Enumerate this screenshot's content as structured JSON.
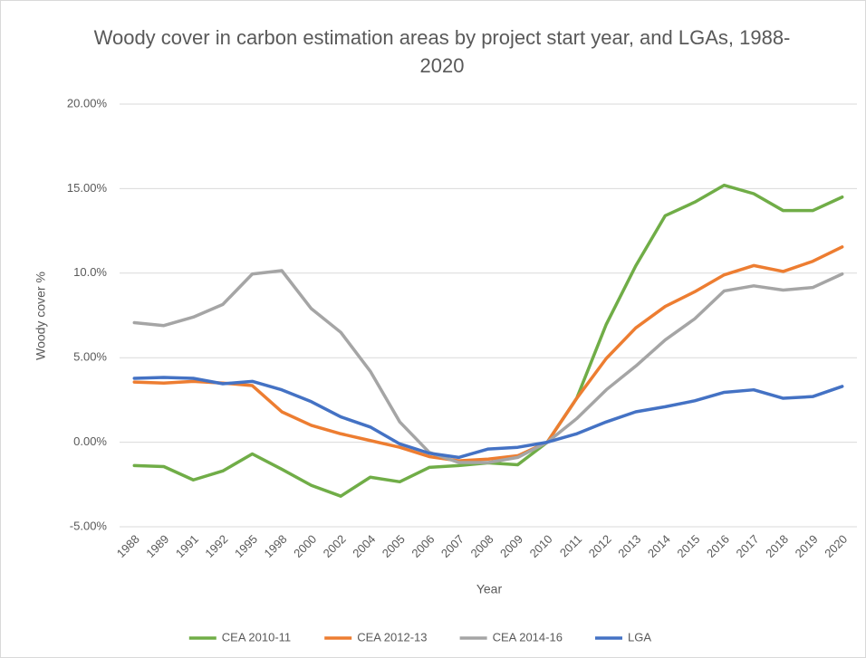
{
  "chart_data": {
    "type": "line",
    "title": "Woody cover in carbon estimation areas by project start year, and LGAs, 1988-2020",
    "x_label": "Year",
    "y_label": "Woody cover %",
    "categories": [
      "1988",
      "1989",
      "1991",
      "1992",
      "1995",
      "1998",
      "2000",
      "2002",
      "2004",
      "2005",
      "2006",
      "2007",
      "2008",
      "2009",
      "2010",
      "2011",
      "2012",
      "2013",
      "2014",
      "2015",
      "2016",
      "2017",
      "2018",
      "2019",
      "2020"
    ],
    "series": [
      {
        "name": "CEA 2010-11",
        "color": "#70ad47",
        "values": [
          -1.38,
          -1.44,
          -2.23,
          -1.7,
          -0.69,
          -1.6,
          -2.55,
          -3.19,
          -2.07,
          -2.34,
          -1.49,
          -1.38,
          -1.22,
          -1.33,
          0,
          2.6,
          6.97,
          10.43,
          13.4,
          14.2,
          15.2,
          14.7,
          13.7,
          13.7,
          14.5
        ]
      },
      {
        "name": "CEA 2012-13",
        "color": "#ed7d31",
        "values": [
          3.56,
          3.5,
          3.6,
          3.5,
          3.35,
          1.8,
          1.0,
          0.5,
          0.1,
          -0.3,
          -0.85,
          -1.1,
          -1.0,
          -0.8,
          0,
          2.6,
          4.95,
          6.76,
          8.03,
          8.9,
          9.9,
          10.45,
          10.1,
          10.7,
          11.55
        ]
      },
      {
        "name": "CEA 2014-16",
        "color": "#a5a5a5",
        "values": [
          7.07,
          6.9,
          7.4,
          8.15,
          9.95,
          10.15,
          7.9,
          6.5,
          4.2,
          1.2,
          -0.6,
          -1.2,
          -1.2,
          -0.9,
          0,
          1.4,
          3.1,
          4.5,
          6.05,
          7.3,
          8.95,
          9.25,
          9.0,
          9.15,
          9.95
        ]
      },
      {
        "name": "LGA",
        "color": "#4472c4",
        "values": [
          3.78,
          3.83,
          3.78,
          3.46,
          3.6,
          3.1,
          2.4,
          1.5,
          0.9,
          -0.1,
          -0.65,
          -0.9,
          -0.4,
          -0.3,
          0,
          0.5,
          1.2,
          1.8,
          2.1,
          2.45,
          2.95,
          3.1,
          2.6,
          2.7,
          3.3
        ]
      }
    ],
    "ylim": [
      -5,
      20
    ],
    "yticks": [
      {
        "value": -5,
        "label": "-5.00%"
      },
      {
        "value": 0,
        "label": "0.00%"
      },
      {
        "value": 5,
        "label": "5.00%"
      },
      {
        "value": 10,
        "label": "10.0%"
      },
      {
        "value": 15,
        "label": "15.00%"
      },
      {
        "value": 20,
        "label": "20.00%"
      }
    ],
    "grid": true,
    "legend": "bottom"
  }
}
